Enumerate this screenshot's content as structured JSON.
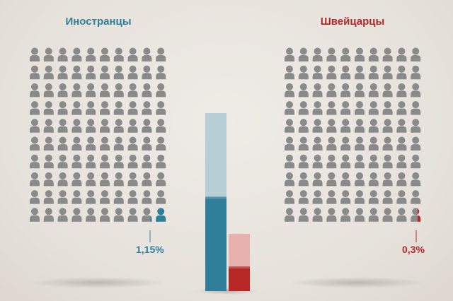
{
  "chart_data": {
    "type": "pictogram-bar",
    "grid": {
      "rows": 10,
      "cols": 10,
      "units": 100
    },
    "series": [
      {
        "name": "Иностранцы",
        "value_label": "1,15%",
        "value": 1.15,
        "color": "#2f7f9b",
        "track_color": "#b7cfd4"
      },
      {
        "name": "Швейцарцы",
        "value_label": "0,3%",
        "value": 0.3,
        "color": "#b52826",
        "track_color": "#e7b2ae"
      }
    ],
    "icon_color": "#8a8a8a",
    "icon": "person-icon"
  }
}
